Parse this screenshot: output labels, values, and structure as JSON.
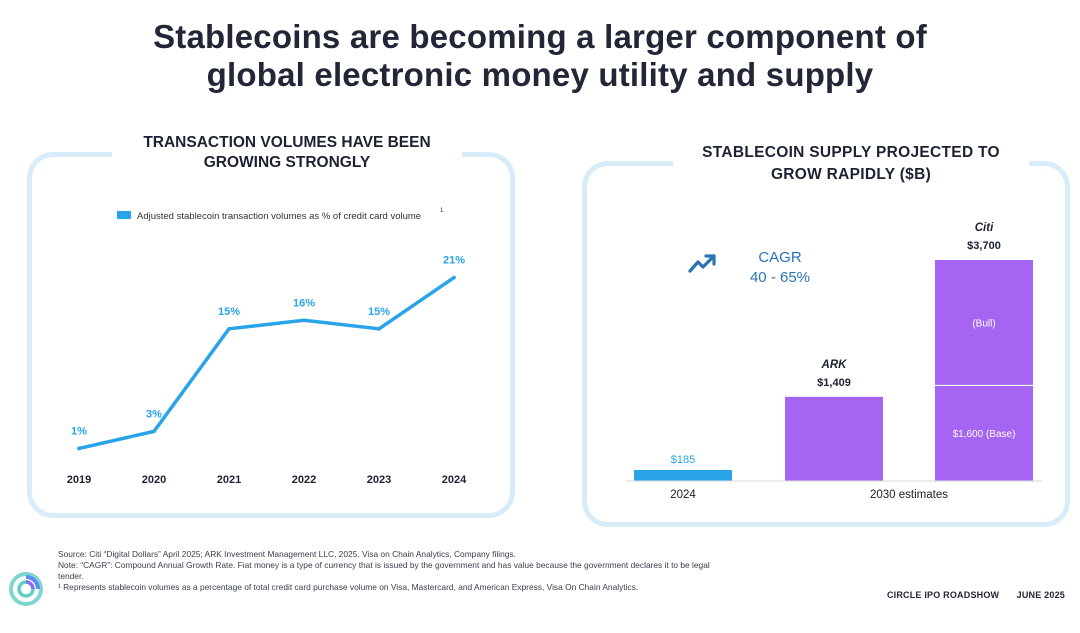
{
  "title": {
    "line1": "Stablecoins are becoming a larger component of",
    "line2": "global electronic money utility and supply"
  },
  "chart_data": [
    {
      "type": "line",
      "title_line1": "TRANSACTION VOLUMES HAVE BEEN",
      "title_line2": "GROWING STRONGLY",
      "legend": "Adjusted stablecoin transaction volumes as % of credit card volume",
      "legend_footnote": "1",
      "x": [
        "2019",
        "2020",
        "2021",
        "2022",
        "2023",
        "2024"
      ],
      "values": [
        1,
        3,
        15,
        16,
        15,
        21
      ],
      "data_labels": [
        "1%",
        "3%",
        "15%",
        "16%",
        "15%",
        "21%"
      ],
      "ylim": [
        0,
        22
      ],
      "color": "#2aa4e8"
    },
    {
      "type": "bar",
      "title_line1": "STABLECOIN SUPPLY PROJECTED TO",
      "title_line2": "GROW RAPIDLY ($B)",
      "cagr_label": "CAGR",
      "cagr_value": "40 - 65%",
      "category_labels": [
        "2024",
        "2030 estimates"
      ],
      "bars": [
        {
          "name": "",
          "value": 185,
          "label": "$185",
          "color": "#2aa4e8"
        },
        {
          "name": "ARK",
          "value": 1409,
          "label": "$1,409",
          "color": "#a565f2"
        },
        {
          "name": "Citi",
          "total": 3700,
          "label": "$3,700",
          "segments": [
            {
              "name": "$1,600 (Base)",
              "value": 1600
            },
            {
              "name": "(Bull)",
              "value": 2100
            }
          ],
          "color": "#a565f2"
        }
      ],
      "ylim": [
        0,
        3700
      ]
    }
  ],
  "footnotes": [
    "Source: Citi “Digital Dollars” April 2025; ARK Investment Management LLC, 2025. Visa on Chain Analytics, Company filings.",
    "Note: “CAGR”: Compound Annual Growth Rate. Fiat money is a type of currency that is issued by the government and has value because the government declares it to be legal tender.",
    "¹ Represents stablecoin volumes as a percentage of total credit card purchase volume on Visa, Mastercard, and American Express, Visa On Chain Analytics."
  ],
  "footer": {
    "text": "CIRCLE IPO ROADSHOW",
    "date": "JUNE 2025"
  },
  "colors": {
    "blue": "#2aa4e8",
    "purple": "#a565f2",
    "panel_border": "#d8ebf8",
    "cagr": "#2a72b5"
  }
}
